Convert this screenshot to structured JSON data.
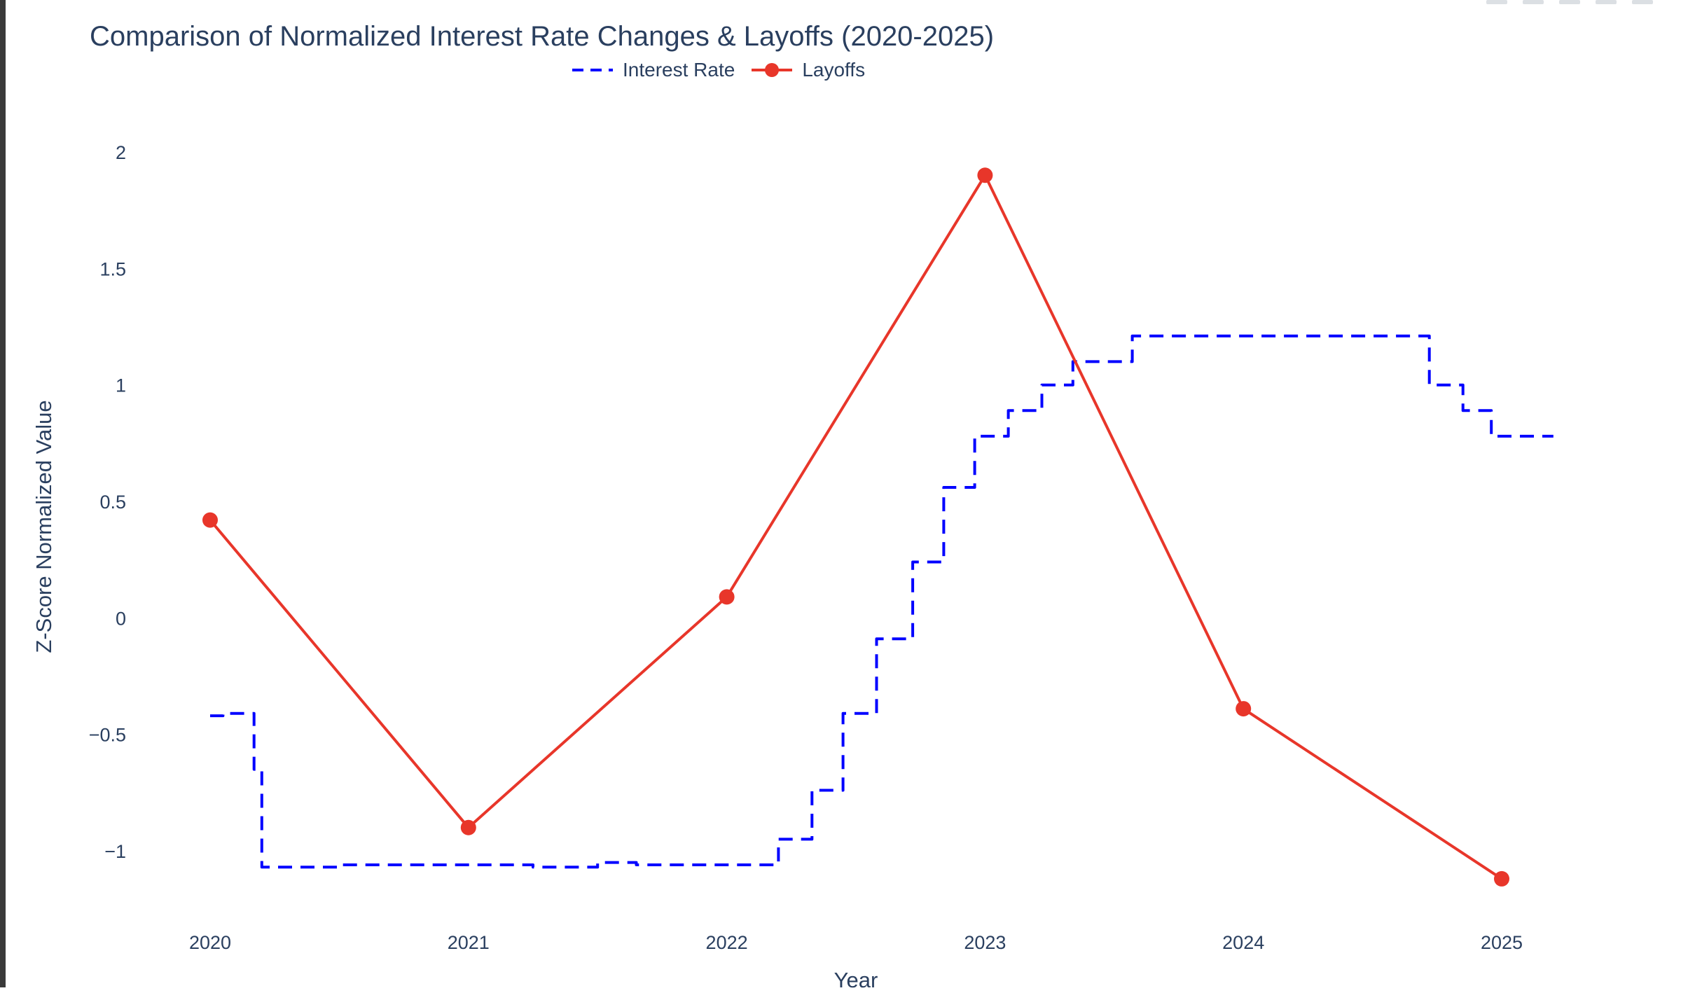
{
  "chart_data": {
    "type": "line",
    "title": "Comparison of Normalized Interest Rate Changes & Layoffs (2020-2025)",
    "xlabel": "Year",
    "ylabel": "Z-Score Normalized Value",
    "xlim": [
      2020,
      2025.2
    ],
    "ylim": [
      -1.3,
      2.05
    ],
    "x_ticks": [
      2020,
      2021,
      2022,
      2023,
      2024,
      2025
    ],
    "y_ticks": [
      -1,
      -0.5,
      0,
      0.5,
      1,
      1.5,
      2
    ],
    "y_tick_labels": [
      "−1",
      "−0.5",
      "0",
      "0.5",
      "1",
      "1.5",
      "2"
    ],
    "grid": false,
    "legend_position": "top-center",
    "series": [
      {
        "name": "Interest Rate",
        "style": "dashed",
        "shape": "step",
        "color": "#0000ff",
        "x": [
          2020.0,
          2020.05,
          2020.05,
          2020.17,
          2020.17,
          2020.2,
          2020.2,
          2020.25,
          2020.25,
          2020.5,
          2020.5,
          2021.0,
          2021.0,
          2021.25,
          2021.25,
          2021.5,
          2021.5,
          2021.65,
          2021.65,
          2022.2,
          2022.2,
          2022.33,
          2022.33,
          2022.45,
          2022.45,
          2022.58,
          2022.58,
          2022.72,
          2022.72,
          2022.84,
          2022.84,
          2022.96,
          2022.96,
          2023.09,
          2023.09,
          2023.22,
          2023.22,
          2023.34,
          2023.34,
          2023.57,
          2023.57,
          2024.72,
          2024.72,
          2024.85,
          2024.85,
          2024.96,
          2024.96,
          2025.2
        ],
        "y": [
          -0.42,
          -0.42,
          -0.41,
          -0.41,
          -0.65,
          -0.65,
          -1.07,
          -1.07,
          -1.07,
          -1.07,
          -1.06,
          -1.06,
          -1.06,
          -1.06,
          -1.07,
          -1.07,
          -1.05,
          -1.05,
          -1.06,
          -1.06,
          -0.95,
          -0.95,
          -0.74,
          -0.74,
          -0.41,
          -0.41,
          -0.09,
          -0.09,
          0.24,
          0.24,
          0.56,
          0.56,
          0.78,
          0.78,
          0.89,
          0.89,
          1.0,
          1.0,
          1.1,
          1.1,
          1.21,
          1.21,
          1.0,
          1.0,
          0.89,
          0.89,
          0.78,
          0.78
        ]
      },
      {
        "name": "Layoffs",
        "style": "solid",
        "markers": true,
        "color": "#e8362a",
        "x": [
          2020,
          2021,
          2022,
          2023,
          2024,
          2025
        ],
        "y": [
          0.42,
          -0.9,
          0.09,
          1.9,
          -0.39,
          -1.12
        ]
      }
    ]
  }
}
